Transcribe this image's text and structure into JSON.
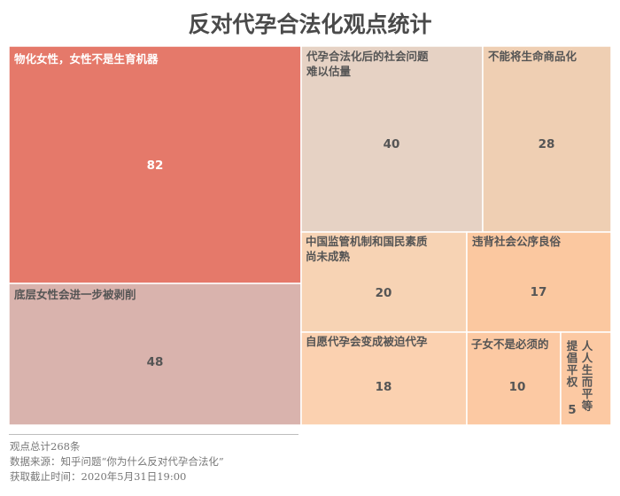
{
  "title": "反对代孕合法化观点统计",
  "chart_data": {
    "type": "treemap",
    "title": "反对代孕合法化观点统计",
    "items": [
      {
        "label": "物化女性，女性不是生育机器",
        "value": 82,
        "color": "#e5796a"
      },
      {
        "label": "底层女性会进一步被剥削",
        "value": 48,
        "color": "#d9b3ad"
      },
      {
        "label": "代孕合法化后的社会问题难以估量",
        "value": 40,
        "color": "#e6d2c4"
      },
      {
        "label": "不能将生命商品化",
        "value": 28,
        "color": "#efcfb3"
      },
      {
        "label": "中国监管机制和国民素质尚未成熟",
        "value": 20,
        "color": "#f7d3b4"
      },
      {
        "label": "违背社会公序良俗",
        "value": 17,
        "color": "#fbc8a0"
      },
      {
        "label": "自愿代孕会变成被迫代孕",
        "value": 18,
        "color": "#fbd1b0"
      },
      {
        "label": "子女不是必须的",
        "value": 10,
        "color": "#fcc9a3"
      },
      {
        "label": "人人生而平等",
        "value": 5,
        "color": "#fcc9a3"
      },
      {
        "label": "提倡平权",
        "value": 0,
        "color": "#fcc9a3"
      }
    ]
  },
  "notes": {
    "total": "观点总计268条",
    "source": "数据来源：知乎问题“你为什么反对代孕合法化”",
    "cutoff": "获取截止时间：2020年5月31日19:00"
  }
}
